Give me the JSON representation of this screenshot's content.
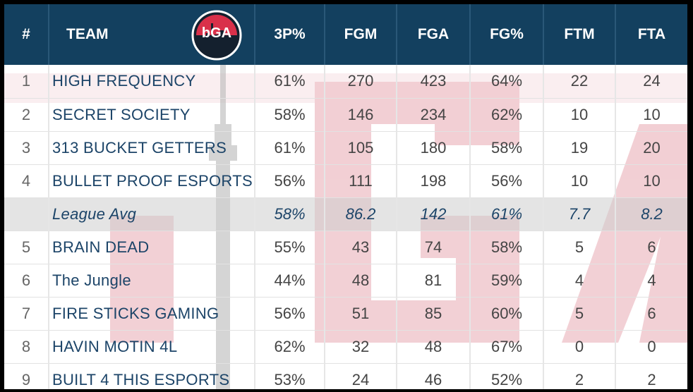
{
  "header": {
    "rank": "#",
    "team": "TEAM",
    "columns": [
      "3P%",
      "FGM",
      "FGA",
      "FG%",
      "FTM",
      "FTA"
    ],
    "logo_text": "bGA"
  },
  "rows": [
    {
      "rank": "1",
      "team": "HIGH FREQUENCY",
      "p3": "61%",
      "fgm": "270",
      "fga": "423",
      "fgp": "64%",
      "ftm": "22",
      "fta": "24"
    },
    {
      "rank": "2",
      "team": "SECRET SOCIETY",
      "p3": "58%",
      "fgm": "146",
      "fga": "234",
      "fgp": "62%",
      "ftm": "10",
      "fta": "10"
    },
    {
      "rank": "3",
      "team": "313 BUCKET GETTERS",
      "p3": "61%",
      "fgm": "105",
      "fga": "180",
      "fgp": "58%",
      "ftm": "19",
      "fta": "20"
    },
    {
      "rank": "4",
      "team": "BULLET PROOF ESPORTS",
      "p3": "56%",
      "fgm": "111",
      "fga": "198",
      "fgp": "56%",
      "ftm": "10",
      "fta": "10"
    },
    {
      "rank": "",
      "team": "League Avg",
      "p3": "58%",
      "fgm": "86.2",
      "fga": "142",
      "fgp": "61%",
      "ftm": "7.7",
      "fta": "8.2"
    },
    {
      "rank": "5",
      "team": "BRAIN DEAD",
      "p3": "55%",
      "fgm": "43",
      "fga": "74",
      "fgp": "58%",
      "ftm": "5",
      "fta": "6"
    },
    {
      "rank": "6",
      "team": "The Jungle",
      "p3": "44%",
      "fgm": "48",
      "fga": "81",
      "fgp": "59%",
      "ftm": "4",
      "fta": "4"
    },
    {
      "rank": "7",
      "team": "FIRE STICKS GAMING",
      "p3": "56%",
      "fgm": "51",
      "fga": "85",
      "fgp": "60%",
      "ftm": "5",
      "fta": "6"
    },
    {
      "rank": "8",
      "team": "HAVIN MOTIN 4L",
      "p3": "62%",
      "fgm": "32",
      "fga": "48",
      "fgp": "67%",
      "ftm": "0",
      "fta": "0"
    },
    {
      "rank": "9",
      "team": "BUILT 4 THIS ESPORTS",
      "p3": "53%",
      "fgm": "24",
      "fga": "46",
      "fgp": "52%",
      "ftm": "2",
      "fta": "2"
    }
  ],
  "colors": {
    "header_bg": "#13405f",
    "team_text": "#1c4468",
    "watermark": "#e8a9b2"
  }
}
